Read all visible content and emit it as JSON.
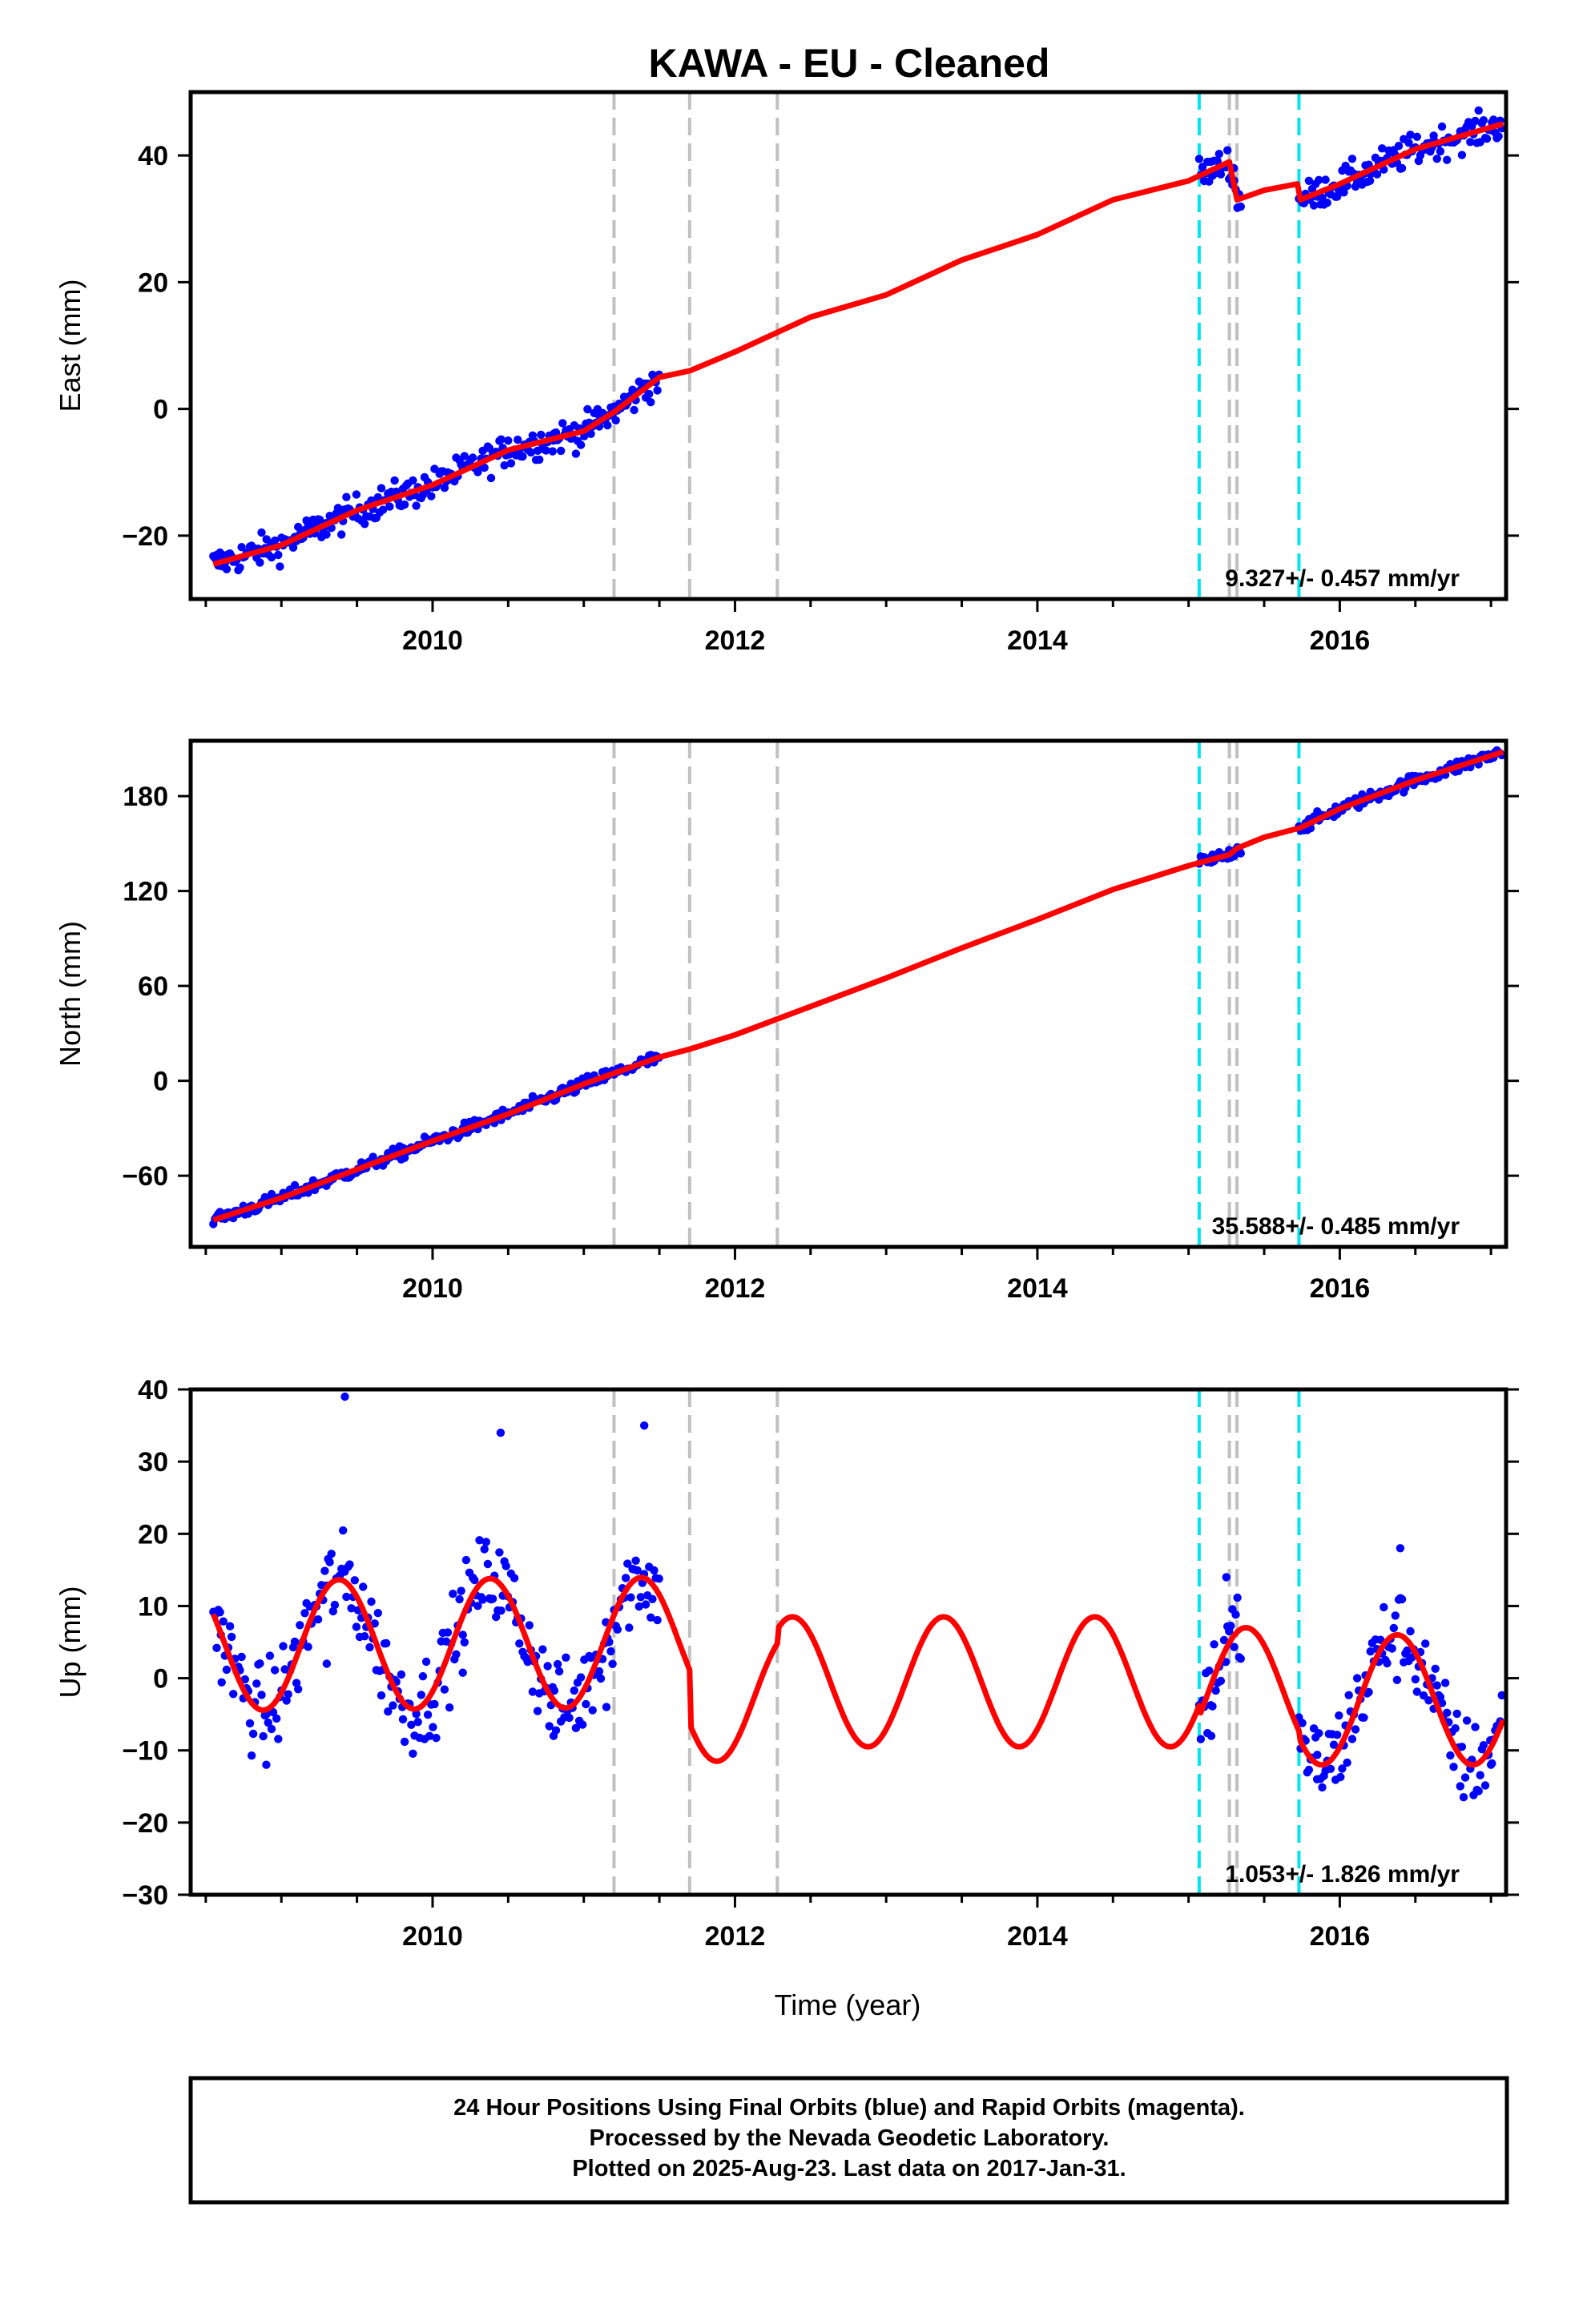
{
  "chart_data": {
    "title": "KAWA  - EU - Cleaned",
    "type": "scatter",
    "xlabel": "Time (year)",
    "xlim": [
      2008.4,
      2017.1
    ],
    "xticks": [
      2010,
      2012,
      2014,
      2016
    ],
    "colors": {
      "final_orbits": "#0000ff",
      "model": "#ff0000",
      "cyan_lines": "#00e5ee",
      "gray_lines": "#c0c0c0"
    },
    "gray_event_lines": [
      2011.2,
      2011.7,
      2012.28,
      2015.27,
      2015.32
    ],
    "cyan_event_lines": [
      2015.07,
      2015.73
    ],
    "data_segments": [
      [
        2008.55,
        2011.5
      ],
      [
        2015.07,
        2015.35
      ],
      [
        2015.73,
        2017.08
      ]
    ],
    "panels": [
      {
        "ylabel": "East (mm)",
        "ylim": [
          -30,
          50
        ],
        "yticks": [
          -20,
          0,
          20,
          40
        ],
        "rate": "9.327+/- 0.457 mm/yr",
        "model": {
          "x": [
            2008.55,
            2009.0,
            2009.5,
            2010.0,
            2010.5,
            2011.0,
            2011.2,
            2011.5,
            2011.7,
            2012.0,
            2012.5,
            2013.0,
            2013.5,
            2014.0,
            2014.5,
            2015.0,
            2015.27,
            2015.32,
            2015.5,
            2015.72,
            2015.74,
            2016.0,
            2016.5,
            2017.08
          ],
          "y": [
            -24.5,
            -21.5,
            -16,
            -12,
            -6.5,
            -3.5,
            -0.5,
            5,
            6,
            9,
            14.5,
            18,
            23.5,
            27.5,
            33,
            36,
            39,
            33,
            34.5,
            35.5,
            33,
            35.5,
            41,
            45
          ]
        },
        "points": {
          "x": [
            2008.6,
            2008.9,
            2009.3,
            2009.6,
            2010.1,
            2010.5,
            2010.8,
            2011.1,
            2011.4,
            2015.15,
            2015.3,
            2015.8,
            2016.2,
            2016.6,
            2017.0
          ],
          "y": [
            -24,
            -22,
            -18,
            -15,
            -10,
            -5,
            -5,
            -1,
            4,
            37,
            38,
            33,
            36,
            42,
            44
          ]
        }
      },
      {
        "ylabel": "North (mm)",
        "ylim": [
          -105,
          215
        ],
        "yticks": [
          -60,
          0,
          60,
          120,
          180
        ],
        "rate": "35.588+/- 0.485 mm/yr",
        "model": {
          "x": [
            2008.55,
            2009.0,
            2009.5,
            2010.0,
            2010.5,
            2011.0,
            2011.5,
            2011.7,
            2012.0,
            2012.5,
            2013.0,
            2013.5,
            2014.0,
            2014.5,
            2015.0,
            2015.27,
            2015.32,
            2015.5,
            2015.74,
            2016.0,
            2016.5,
            2017.08
          ],
          "y": [
            -88,
            -74,
            -56,
            -38,
            -21,
            -2,
            15,
            20,
            29,
            47,
            65,
            84,
            102,
            121,
            136,
            143,
            147,
            154,
            160,
            172,
            190,
            208
          ]
        },
        "points": {
          "x": [
            2008.6,
            2009.0,
            2009.4,
            2009.6,
            2010.1,
            2010.5,
            2010.9,
            2011.2,
            2011.45,
            2015.15,
            2015.3,
            2015.8,
            2016.2,
            2016.6,
            2017.0
          ],
          "y": [
            -86,
            -74,
            -60,
            -52,
            -36,
            -20,
            -6,
            4,
            16,
            138,
            142,
            162,
            178,
            193,
            206
          ]
        }
      },
      {
        "ylabel": "Up (mm)",
        "ylim": [
          -30,
          40
        ],
        "yticks": [
          -30,
          -20,
          -10,
          0,
          10,
          20,
          30,
          40
        ],
        "rate": "1.053+/- 1.826 mm/yr",
        "model_params": {
          "a": 9,
          "phase_year": 0.38
        },
        "model_offsets": [
          {
            "from": 2008.4,
            "to": 2011.7,
            "c": 4.5,
            "slope": 0.15
          },
          {
            "from": 2011.7,
            "to": 2012.28,
            "c": -2.5,
            "slope": 0.0
          },
          {
            "from": 2012.28,
            "to": 2015.07,
            "c": -0.5,
            "slope": 0.0
          },
          {
            "from": 2015.07,
            "to": 2015.73,
            "c": -2.0,
            "slope": 0.0
          },
          {
            "from": 2015.73,
            "to": 2017.1,
            "c": -3.0,
            "slope": 0.0
          }
        ],
        "points": {
          "x": [
            2008.6,
            2008.9,
            2009.3,
            2009.42,
            2009.8,
            2010.2,
            2010.45,
            2010.8,
            2011.15,
            2011.4,
            2015.15,
            2015.25,
            2015.85,
            2016.4,
            2017.0
          ],
          "y": [
            6,
            -12,
            2,
            39,
            -4,
            6,
            34,
            -8,
            -4,
            35,
            -8,
            14,
            -14,
            18,
            -12
          ]
        }
      }
    ]
  },
  "footer": {
    "line1": "24 Hour Positions Using Final Orbits (blue) and Rapid Orbits (magenta).",
    "line2": "Processed by the Nevada Geodetic Laboratory.",
    "line3": "Plotted on 2025-Aug-23. Last data on 2017-Jan-31."
  }
}
